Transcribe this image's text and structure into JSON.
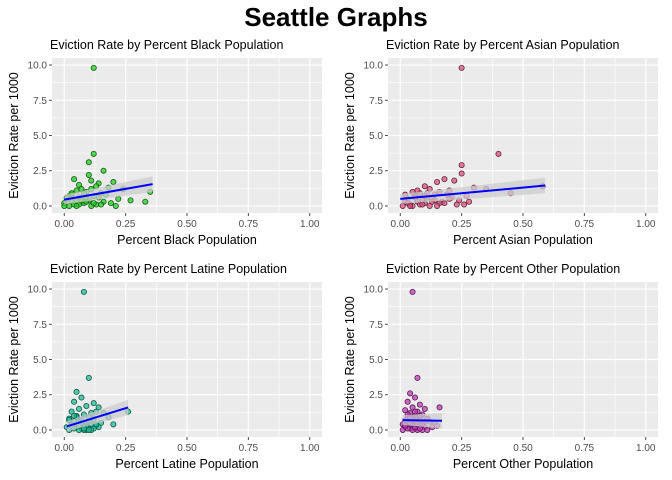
{
  "figure": {
    "title": "Seattle Graphs"
  },
  "style": {
    "panel_bg": "#ebebeb",
    "grid_color": "#ffffff",
    "trend_color": "#0000ff",
    "band_color": "#cccccc",
    "tick_color": "#4d4d4d"
  },
  "chart_data": [
    {
      "type": "scatter",
      "title": "Eviction Rate by Percent Black Population",
      "xlabel": "Percent Black Population",
      "ylabel": "Eviction Rate per 1000",
      "xlim": [
        0,
        1
      ],
      "ylim": [
        0,
        10
      ],
      "xticks": [
        "0.00",
        "0.25",
        "0.50",
        "0.75",
        "1.00"
      ],
      "yticks": [
        "0.0",
        "2.5",
        "5.0",
        "7.5",
        "10.0"
      ],
      "point_color": "#22cc22",
      "x": [
        0.12,
        0.12,
        0.1,
        0.16,
        0.04,
        0.1,
        0.14,
        0.06,
        0.11,
        0.18,
        0.07,
        0.13,
        0.05,
        0.2,
        0.09,
        0.15,
        0.03,
        0.08,
        0.11,
        0.24,
        0.02,
        0.06,
        0.12,
        0.17,
        0.35,
        0.01,
        0.05,
        0.09,
        0.14,
        0.22,
        0.03,
        0.07,
        0.1,
        0.16,
        0.27,
        0.0,
        0.04,
        0.08,
        0.13,
        0.19,
        0.02,
        0.06,
        0.11,
        0.15,
        0.21,
        0.0,
        0.05,
        0.09,
        0.12,
        0.33,
        0.01,
        0.03,
        0.07
      ],
      "y": [
        9.8,
        3.7,
        3.1,
        2.5,
        1.9,
        2.2,
        1.6,
        1.5,
        1.8,
        1.3,
        1.2,
        1.4,
        1.1,
        1.7,
        1.0,
        0.9,
        0.8,
        0.9,
        1.2,
        1.2,
        0.7,
        0.6,
        0.7,
        0.8,
        1.0,
        0.5,
        0.4,
        0.5,
        0.6,
        0.5,
        0.3,
        0.3,
        0.4,
        0.3,
        0.4,
        0.2,
        0.1,
        0.2,
        0.1,
        0.2,
        0.0,
        0.1,
        0.0,
        0.1,
        0.0,
        0.0,
        0.0,
        0.3,
        0.2,
        0.3,
        0.6,
        0.9,
        0.4
      ],
      "trend": {
        "x": [
          0.0,
          0.36
        ],
        "y": [
          0.45,
          1.55
        ]
      }
    },
    {
      "type": "scatter",
      "title": "Eviction Rate by Percent Asian Population",
      "xlabel": "Percent Asian Population",
      "ylabel": "Eviction Rate per 1000",
      "xlim": [
        0,
        1
      ],
      "ylim": [
        0,
        10
      ],
      "xticks": [
        "0.00",
        "0.25",
        "0.50",
        "0.75",
        "1.00"
      ],
      "yticks": [
        "0.0",
        "2.5",
        "5.0",
        "7.5",
        "10.0"
      ],
      "point_color": "#d9527f",
      "x": [
        0.25,
        0.4,
        0.25,
        0.18,
        0.25,
        0.15,
        0.1,
        0.22,
        0.12,
        0.3,
        0.05,
        0.2,
        0.08,
        0.16,
        0.14,
        0.35,
        0.06,
        0.11,
        0.19,
        0.27,
        0.03,
        0.09,
        0.13,
        0.21,
        0.45,
        0.02,
        0.07,
        0.1,
        0.17,
        0.24,
        0.04,
        0.08,
        0.12,
        0.16,
        0.28,
        0.01,
        0.05,
        0.09,
        0.15,
        0.23,
        0.58,
        0.03,
        0.06,
        0.11,
        0.14,
        0.2,
        0.02,
        0.07,
        0.1,
        0.18,
        0.26,
        0.04,
        0.13
      ],
      "y": [
        9.8,
        3.7,
        2.9,
        1.9,
        2.3,
        1.7,
        1.4,
        1.8,
        1.2,
        1.3,
        1.0,
        1.1,
        0.9,
        1.0,
        0.8,
        1.2,
        0.7,
        0.6,
        0.8,
        0.7,
        0.5,
        0.4,
        0.5,
        0.6,
        0.9,
        0.3,
        0.3,
        0.2,
        0.3,
        0.4,
        0.1,
        0.1,
        0.0,
        0.2,
        0.3,
        0.0,
        0.0,
        0.1,
        0.0,
        0.1,
        1.4,
        0.2,
        0.6,
        0.9,
        0.4,
        0.5,
        0.8,
        1.1,
        0.7,
        0.2,
        0.1,
        0.0,
        0.3
      ],
      "trend": {
        "x": [
          0.0,
          0.59
        ],
        "y": [
          0.5,
          1.45
        ]
      }
    },
    {
      "type": "scatter",
      "title": "Eviction Rate by Percent Latine Population",
      "xlabel": "Percent Latine Population",
      "ylabel": "Eviction Rate per 1000",
      "xlim": [
        0,
        1
      ],
      "ylim": [
        0,
        10
      ],
      "xticks": [
        "0.00",
        "0.25",
        "0.50",
        "0.75",
        "1.00"
      ],
      "yticks": [
        "0.0",
        "2.5",
        "5.0",
        "7.5",
        "10.0"
      ],
      "point_color": "#1fbf9a",
      "x": [
        0.08,
        0.1,
        0.05,
        0.07,
        0.12,
        0.04,
        0.09,
        0.06,
        0.14,
        0.03,
        0.11,
        0.08,
        0.13,
        0.05,
        0.1,
        0.16,
        0.02,
        0.07,
        0.12,
        0.18,
        0.26,
        0.04,
        0.09,
        0.06,
        0.15,
        0.03,
        0.11,
        0.08,
        0.13,
        0.2,
        0.01,
        0.05,
        0.1,
        0.07,
        0.14,
        0.02,
        0.06,
        0.09,
        0.12,
        0.04,
        0.08,
        0.11,
        0.03,
        0.07,
        0.1,
        0.05,
        0.09,
        0.02,
        0.06,
        0.13,
        0.04,
        0.08,
        0.1
      ],
      "y": [
        9.8,
        3.7,
        2.7,
        2.3,
        1.9,
        2.0,
        1.7,
        1.5,
        1.6,
        1.3,
        1.2,
        1.1,
        1.3,
        1.0,
        0.9,
        1.2,
        0.8,
        0.7,
        0.8,
        0.9,
        1.3,
        0.6,
        0.5,
        0.6,
        0.5,
        0.4,
        0.4,
        0.3,
        0.3,
        0.4,
        0.2,
        0.2,
        0.1,
        0.1,
        0.2,
        0.0,
        0.0,
        0.0,
        0.1,
        0.1,
        0.0,
        0.0,
        0.3,
        0.5,
        0.6,
        0.9,
        0.2,
        0.7,
        0.3,
        0.4,
        1.0,
        0.1,
        0.0
      ],
      "trend": {
        "x": [
          0.01,
          0.26
        ],
        "y": [
          0.25,
          1.6
        ]
      }
    },
    {
      "type": "scatter",
      "title": "Eviction Rate by Percent Other Population",
      "xlabel": "Percent Other Population",
      "ylabel": "Eviction Rate per 1000",
      "xlim": [
        0,
        1
      ],
      "ylim": [
        0,
        10
      ],
      "xticks": [
        "0.00",
        "0.25",
        "0.50",
        "0.75",
        "1.00"
      ],
      "yticks": [
        "0.0",
        "2.5",
        "5.0",
        "7.5",
        "10.0"
      ],
      "point_color": "#c03ab8",
      "x": [
        0.05,
        0.07,
        0.04,
        0.06,
        0.03,
        0.08,
        0.05,
        0.1,
        0.02,
        0.07,
        0.04,
        0.09,
        0.06,
        0.16,
        0.03,
        0.05,
        0.08,
        0.11,
        0.02,
        0.04,
        0.07,
        0.06,
        0.09,
        0.12,
        0.01,
        0.03,
        0.05,
        0.08,
        0.1,
        0.14,
        0.02,
        0.04,
        0.06,
        0.07,
        0.09,
        0.01,
        0.03,
        0.05,
        0.06,
        0.08,
        0.11,
        0.02,
        0.04,
        0.07,
        0.13,
        0.03,
        0.05,
        0.06,
        0.09,
        0.04,
        0.08,
        0.15,
        0.1
      ],
      "y": [
        9.8,
        3.7,
        2.6,
        2.3,
        2.0,
        1.8,
        1.6,
        1.5,
        1.4,
        1.3,
        1.2,
        1.1,
        1.0,
        1.6,
        0.9,
        0.9,
        0.8,
        0.8,
        0.7,
        0.7,
        0.6,
        0.5,
        0.5,
        0.6,
        0.4,
        0.4,
        0.3,
        0.3,
        0.2,
        0.5,
        0.2,
        0.1,
        0.1,
        0.0,
        0.0,
        0.0,
        0.1,
        0.0,
        0.2,
        0.1,
        0.0,
        0.3,
        0.5,
        0.4,
        0.2,
        1.1,
        0.7,
        1.3,
        0.4,
        0.9,
        1.0,
        0.3,
        0.6
      ],
      "trend": {
        "x": [
          0.01,
          0.17
        ],
        "y": [
          0.7,
          0.65
        ]
      }
    }
  ]
}
